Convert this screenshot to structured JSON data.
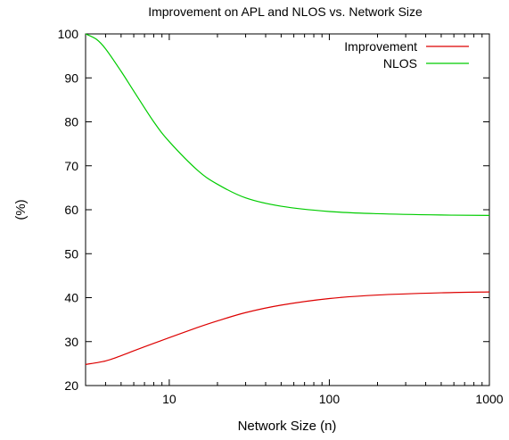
{
  "chart_data": {
    "type": "line",
    "title": "Improvement on APL and NLOS  vs. Network Size",
    "xlabel": "Network Size (n)",
    "ylabel": "(%)",
    "xscale": "log",
    "xlim": [
      3,
      1000
    ],
    "ylim": [
      20,
      100
    ],
    "xticks": [
      10,
      100,
      1000
    ],
    "yticks": [
      20,
      30,
      40,
      50,
      60,
      70,
      80,
      90,
      100
    ],
    "grid": false,
    "legend_position": "top-right",
    "series": [
      {
        "name": "Improvement",
        "color": "#dd0000",
        "x": [
          3,
          4,
          5,
          6,
          8,
          10,
          15,
          20,
          30,
          50,
          100,
          200,
          500,
          1000
        ],
        "y": [
          24.8,
          25.6,
          26.8,
          27.9,
          29.6,
          30.9,
          33.2,
          34.7,
          36.6,
          38.3,
          39.8,
          40.6,
          41.1,
          41.3
        ]
      },
      {
        "name": "NLOS",
        "color": "#00cc00",
        "x": [
          3,
          3.5,
          4,
          5,
          6,
          8,
          10,
          15,
          20,
          30,
          50,
          100,
          200,
          500,
          1000
        ],
        "y": [
          100,
          98.8,
          96.6,
          91.5,
          87.0,
          80.0,
          75.5,
          69.0,
          65.8,
          62.7,
          60.8,
          59.6,
          59.1,
          58.8,
          58.7
        ]
      }
    ]
  }
}
